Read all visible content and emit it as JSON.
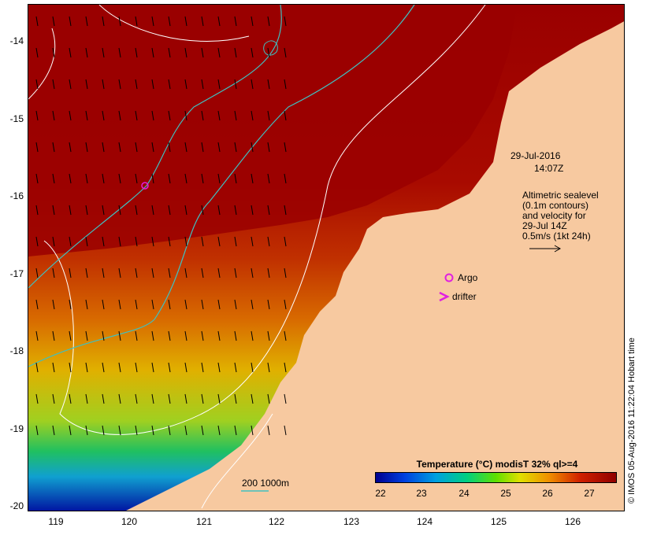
{
  "map": {
    "y_axis_labels": [
      "-14",
      "-15",
      "-16",
      "-17",
      "-18",
      "-19",
      "-20"
    ],
    "x_axis_labels": [
      "119",
      "120",
      "121",
      "122",
      "123",
      "124",
      "125",
      "126"
    ],
    "date_label": "29-Jul-2016",
    "time_label": "14:07Z",
    "description_lines": [
      "Altimetric sealevel",
      "(0.1m contours)",
      "and velocity for",
      "29-Jul 14Z",
      "0.5m/s (1kt 24h)"
    ],
    "argo_label": "Argo",
    "drifter_label": "drifter",
    "bathy_label": "200  1000m",
    "colorbar_title": "Temperature (°C) modisT 32% ql>=4",
    "colorbar_ticks": [
      "22",
      "23",
      "24",
      "25",
      "26",
      "27"
    ],
    "side_label": "© IMOS 05-Aug-2016 11:22:04 Hobart time",
    "colors": {
      "land": "#f7c9a0",
      "warm": "#a00000",
      "argo": "#e020e0",
      "contour_bathy": "#40c0c0"
    }
  }
}
